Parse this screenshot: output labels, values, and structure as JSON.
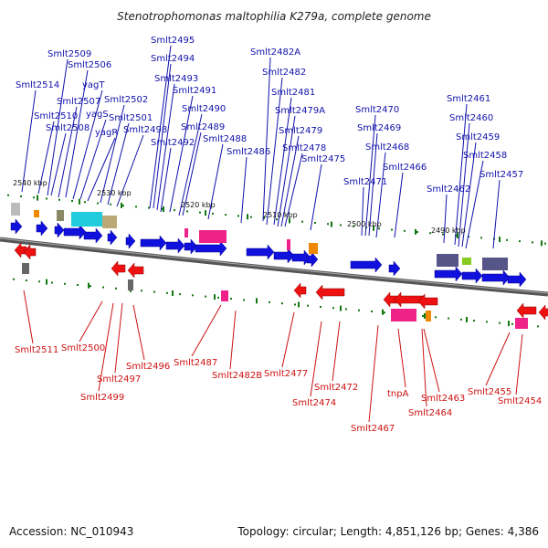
{
  "title": "Stenotrophomonas maltophilia K279a, complete genome",
  "footer": {
    "accession": "Accession: NC_010943",
    "topology": "Topology: circular; Length: 4,851,126 bp; Genes: 4,386"
  },
  "colors": {
    "forward_label": "#1111aa",
    "reverse_label": "#cc1111",
    "forward_gene": "#1111dd",
    "reverse_gene": "#ee1111",
    "backbone": "#666666",
    "tick": "#117711"
  },
  "kbp_labels": [
    "2540 kbp",
    "2530 kbp",
    "2520 kbp",
    "2510 kbp",
    "2500 kbp",
    "2490 kbp"
  ],
  "forward_genes": [
    "Smlt2514",
    "Smlt2510",
    "Smlt2509",
    "Smlt2508",
    "Smlt2507",
    "Smlt2506",
    "yagT",
    "yagS",
    "yagR",
    "Smlt2502",
    "Smlt2501",
    "Smlt2498",
    "Smlt2495",
    "Smlt2494",
    "Smlt2493",
    "Smlt2492",
    "Smlt2491",
    "Smlt2490",
    "Smlt2489",
    "Smlt2488",
    "Smlt2486",
    "Smlt2482A",
    "Smlt2482",
    "Smlt2481",
    "Smlt2479A",
    "Smlt2479",
    "Smlt2478",
    "Smlt2475",
    "Smlt2471",
    "Smlt2470",
    "Smlt2469",
    "Smlt2468",
    "Smlt2466",
    "Smlt2462",
    "Smlt2461",
    "Smlt2460",
    "Smlt2459",
    "Smlt2458",
    "Smlt2457"
  ],
  "reverse_genes": [
    "Smlt2511",
    "Smlt2500",
    "Smlt2499",
    "Smlt2497",
    "Smlt2496",
    "Smlt2487",
    "Smlt2482B",
    "Smlt2477",
    "Smlt2474",
    "Smlt2472",
    "Smlt2467",
    "tnpA",
    "Smlt2464",
    "Smlt2463",
    "Smlt2455",
    "Smlt2454"
  ]
}
